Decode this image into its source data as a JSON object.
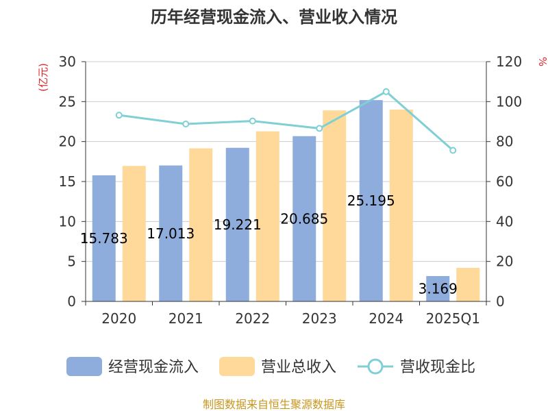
{
  "chart_data": {
    "type": "bar",
    "title": "历年经营现金流入、营业收入情况",
    "categories": [
      "2020",
      "2021",
      "2022",
      "2023",
      "2024",
      "2025Q1"
    ],
    "series": [
      {
        "name": "经营现金流入",
        "axis": "left",
        "color": "#8eaddc",
        "values": [
          15.78,
          17.01,
          19.22,
          20.68,
          25.19,
          3.17
        ]
      },
      {
        "name": "营业总收入",
        "axis": "left",
        "color": "#fed999",
        "values": [
          16.95,
          19.15,
          21.28,
          23.9,
          24.0,
          4.2
        ]
      },
      {
        "name": "营收现金比",
        "axis": "right",
        "type": "line",
        "color": "#7fcfd4",
        "values": [
          93.2,
          88.8,
          90.3,
          86.6,
          105.0,
          75.6
        ]
      }
    ],
    "data_labels": [
      "15.783",
      "17.013",
      "19.221",
      "20.685",
      "25.195",
      "3.169"
    ],
    "yleft": {
      "label": "(亿元)",
      "min": 0,
      "max": 30,
      "ticks": [
        0,
        5,
        10,
        15,
        20,
        25,
        30
      ]
    },
    "yright": {
      "label": "%",
      "min": 0,
      "max": 120,
      "ticks": [
        0,
        20,
        40,
        60,
        80,
        100,
        120
      ]
    },
    "grid": true,
    "legend_position": "bottom"
  },
  "source": "制图数据来自恒生聚源数据库"
}
